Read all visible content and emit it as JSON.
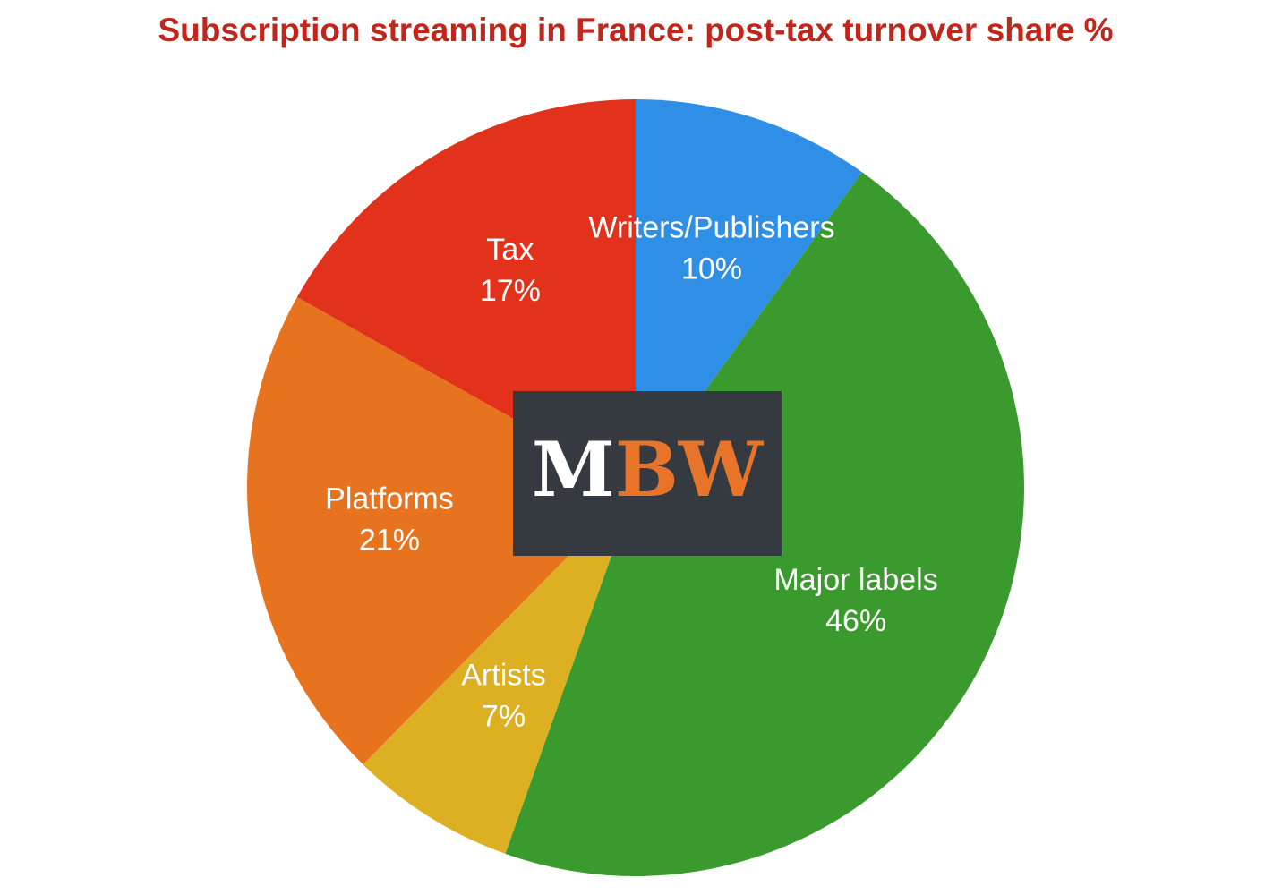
{
  "chart_data": {
    "type": "pie",
    "title": "Subscription streaming in France: post-tax turnover share %",
    "categories": [
      "Writers/Publishers",
      "Major labels",
      "Artists",
      "Platforms",
      "Tax"
    ],
    "values": [
      10,
      46,
      7,
      21,
      17
    ],
    "value_labels": [
      "10%",
      "46%",
      "7%",
      "21%",
      "17%"
    ],
    "colors": [
      "#2f8fe6",
      "#3b9a2e",
      "#ddb024",
      "#e8731f",
      "#e2321c"
    ]
  },
  "logo": {
    "parts": [
      "M",
      "BW"
    ]
  }
}
